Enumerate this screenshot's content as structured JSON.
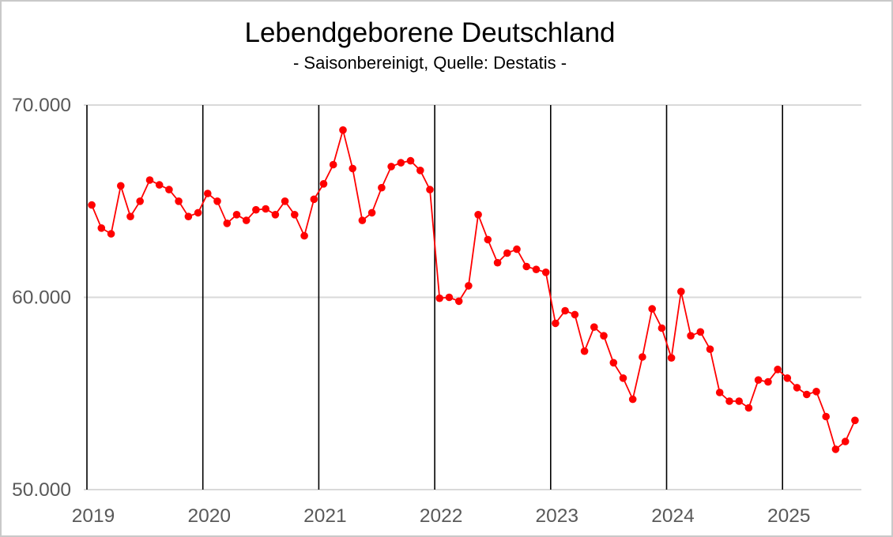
{
  "header": {
    "title": "Lebendgeborene Deutschland",
    "subtitle": "- Saisonbereinigt, Quelle: Destatis -"
  },
  "chart_data": {
    "type": "line",
    "title": "Lebendgeborene Deutschland",
    "subtitle": "- Saisonbereinigt, Quelle: Destatis -",
    "ylabel": "",
    "xlabel": "",
    "ylim": [
      50000,
      70000
    ],
    "grid": "horizontal-major-plus-vertical-year-lines",
    "legend": "none",
    "yticks": [
      {
        "value": 70000,
        "label": "70.000"
      },
      {
        "value": 60000,
        "label": "60.000"
      },
      {
        "value": 50000,
        "label": "50.000"
      }
    ],
    "xticks": [
      {
        "year": 2019,
        "label": "2019"
      },
      {
        "year": 2020,
        "label": "2020"
      },
      {
        "year": 2021,
        "label": "2021"
      },
      {
        "year": 2022,
        "label": "2022"
      },
      {
        "year": 2023,
        "label": "2023"
      },
      {
        "year": 2024,
        "label": "2024"
      },
      {
        "year": 2025,
        "label": "2025"
      }
    ],
    "colors": {
      "series": "#ff0000",
      "gridline": "#d9d9d9",
      "year_line": "#000000",
      "axis_text": "#595959",
      "title_text": "#000000"
    },
    "series": [
      {
        "name": "Lebendgeborene Deutschland (saisonbereinigt)",
        "start": "2019-01",
        "frequency": "monthly",
        "color": "#ff0000",
        "values": [
          64800,
          63600,
          63300,
          65800,
          64200,
          65000,
          66100,
          65850,
          65600,
          65000,
          64200,
          64400,
          65400,
          65000,
          63850,
          64300,
          64000,
          64550,
          64600,
          64300,
          65000,
          64300,
          63200,
          65100,
          65900,
          66900,
          68700,
          66700,
          64000,
          64400,
          65700,
          66800,
          67000,
          67100,
          66600,
          65600,
          59950,
          60000,
          59800,
          60600,
          64300,
          63000,
          61800,
          62300,
          62500,
          61600,
          61450,
          61300,
          58650,
          59300,
          59100,
          57200,
          58450,
          58000,
          56600,
          55800,
          54700,
          56900,
          59400,
          58400,
          56850,
          60300,
          58000,
          58200,
          57300,
          55050,
          54600,
          54600,
          54250,
          55700,
          55600,
          56250,
          55800,
          55300,
          54950,
          55100,
          53800,
          52100,
          52500,
          53600
        ]
      }
    ]
  }
}
